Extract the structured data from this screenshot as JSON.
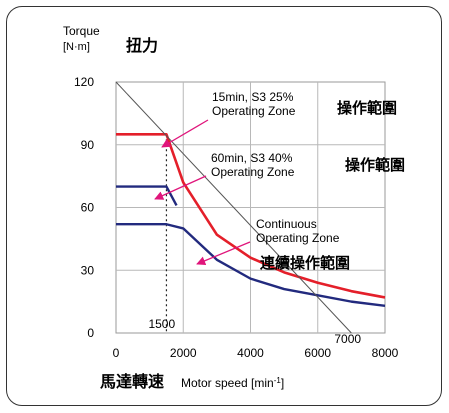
{
  "chart_data": {
    "type": "line",
    "title": "",
    "ylabel": "Torque",
    "ylabel_unit": "[N·m]",
    "ylabel_cjk": "扭力",
    "xlabel": "Motor speed [min",
    "xlabel_sup": "-1",
    "xlabel_close": "]",
    "xlabel_cjk": "馬達轉速",
    "xlim": [
      0,
      8000
    ],
    "ylim": [
      0,
      120
    ],
    "x_ticks": [
      0,
      2000,
      4000,
      6000,
      8000
    ],
    "y_ticks": [
      0,
      30,
      60,
      90,
      120
    ],
    "x_tick_labels": [
      "0",
      "2000",
      "4000",
      "6000",
      "8000"
    ],
    "y_tick_labels": [
      "0",
      "30",
      "60",
      "90",
      "120"
    ],
    "grid": true,
    "series": [
      {
        "name": "15min, S3 25% Operating Zone",
        "color": "#e41f2a",
        "x": [
          0,
          1500,
          2000,
          3000,
          4000,
          5000,
          6000,
          7000,
          8000
        ],
        "y": [
          95,
          95,
          72,
          47,
          36,
          29,
          24,
          20,
          17
        ]
      },
      {
        "name": "60min, S3 40% Operating Zone",
        "color": "#222a7e",
        "x": [
          0,
          1500,
          1800
        ],
        "y": [
          70,
          70,
          61
        ]
      },
      {
        "name": "Continuous Operating Zone",
        "color": "#222a7e",
        "x": [
          0,
          1500,
          2000,
          3000,
          4000,
          5000,
          6000,
          7000,
          8000
        ],
        "y": [
          52,
          52,
          50,
          35,
          26,
          21,
          18,
          15,
          13
        ]
      },
      {
        "name": "",
        "color": "#555555",
        "x": [
          0,
          7000
        ],
        "y": [
          120,
          0
        ]
      }
    ],
    "annotations": [
      {
        "id": "a15",
        "lines": [
          "15min, S3 25%",
          "Operating Zone"
        ],
        "cjk": "操作範圍",
        "color": "#e0157b"
      },
      {
        "id": "a60",
        "lines": [
          "60min, S3 40%",
          "Operating Zone"
        ],
        "cjk": "操作範圍",
        "color": "#e0157b"
      },
      {
        "id": "acont",
        "lines": [
          "Continuous",
          "Operating Zone"
        ],
        "cjk": "連續操作範圍",
        "color": "#e0157b"
      }
    ],
    "marker_labels": [
      {
        "id": "m1500",
        "text": "1500",
        "x": 1500
      },
      {
        "id": "m7000",
        "text": "7000",
        "x": 7000
      }
    ]
  }
}
